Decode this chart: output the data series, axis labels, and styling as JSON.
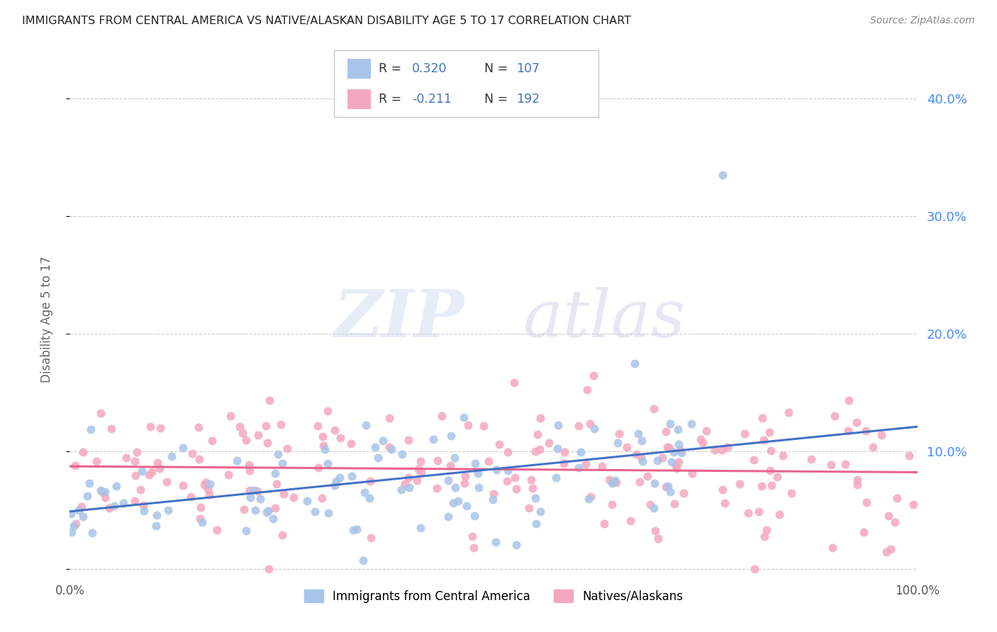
{
  "title": "IMMIGRANTS FROM CENTRAL AMERICA VS NATIVE/ALASKAN DISABILITY AGE 5 TO 17 CORRELATION CHART",
  "source": "Source: ZipAtlas.com",
  "ylabel": "Disability Age 5 to 17",
  "blue_R": 0.32,
  "blue_N": 107,
  "pink_R": -0.211,
  "pink_N": 192,
  "blue_color": "#a8c4e8",
  "blue_line_color": "#4472c4",
  "pink_color": "#f4a8be",
  "pink_line_color": "#e8648c",
  "legend_label_blue": "Immigrants from Central America",
  "legend_label_pink": "Natives/Alaskans",
  "watermark_zip": "ZIP",
  "watermark_atlas": "atlas",
  "xlim": [
    0.0,
    1.0
  ],
  "ylim": [
    -0.005,
    0.43
  ],
  "yticks": [
    0.0,
    0.1,
    0.2,
    0.3,
    0.4
  ],
  "right_ytick_labels": [
    "",
    "10.0%",
    "20.0%",
    "30.0%",
    "40.0%"
  ],
  "blue_seed": 12,
  "pink_seed": 99,
  "background_color": "#ffffff",
  "grid_color": "#cccccc",
  "legend_R_color": "#333333",
  "legend_val_color": "#4472c4",
  "title_color": "#222222",
  "source_color": "#888888",
  "ylabel_color": "#666666",
  "xtick_color": "#555555",
  "right_ytick_color": "#4488ff"
}
